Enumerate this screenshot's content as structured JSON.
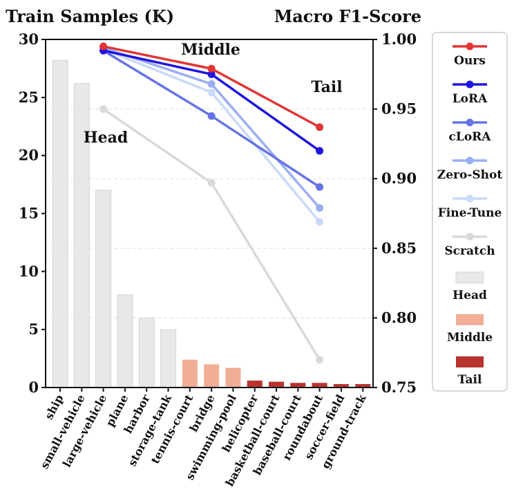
{
  "chart_data": {
    "type": "bar+line",
    "title_left": "Train Samples (K)",
    "title_right": "Macro F1-Score",
    "categories": [
      "ship",
      "small-vehicle",
      "large-vehicle",
      "plane",
      "harbor",
      "storage-tank",
      "tennis-court",
      "bridge",
      "swimming-pool",
      "helicopter",
      "basketball-court",
      "baseball-court",
      "roundabout",
      "soccer-field",
      "ground-track"
    ],
    "bars": {
      "axis": "left",
      "ylim": [
        0,
        30
      ],
      "yticks": [
        0,
        5,
        10,
        15,
        20,
        25,
        30
      ],
      "values": [
        28.2,
        26.2,
        17.0,
        8.0,
        6.0,
        5.0,
        2.4,
        2.0,
        1.7,
        0.6,
        0.5,
        0.4,
        0.4,
        0.3,
        0.3
      ],
      "groups": [
        "Head",
        "Head",
        "Head",
        "Head",
        "Head",
        "Head",
        "Middle",
        "Middle",
        "Middle",
        "Tail",
        "Tail",
        "Tail",
        "Tail",
        "Tail",
        "Tail"
      ],
      "group_colors": {
        "Head": "#e8e8e8",
        "Middle": "#efae95",
        "Tail": "#b9342f"
      }
    },
    "lines": {
      "axis": "right",
      "ylim": [
        0.75,
        1.0
      ],
      "yticks": [
        "0.75",
        "0.80",
        "0.85",
        "0.90",
        "0.95",
        "1.00"
      ],
      "x_categories": [
        "large-vehicle",
        "bridge",
        "roundabout"
      ],
      "series": [
        {
          "name": "Scratch",
          "color": "#d9d9d9",
          "values": [
            0.95,
            0.897,
            0.77
          ]
        },
        {
          "name": "Fine-Tune",
          "color": "#c9daf8",
          "values": [
            0.993,
            0.962,
            0.869
          ]
        },
        {
          "name": "Zero-Shot",
          "color": "#9aaef2",
          "values": [
            0.994,
            0.968,
            0.879
          ]
        },
        {
          "name": "cLoRA",
          "color": "#6674e6",
          "values": [
            0.992,
            0.945,
            0.894
          ]
        },
        {
          "name": "LoRA",
          "color": "#1f14e0",
          "values": [
            0.992,
            0.975,
            0.92
          ]
        },
        {
          "name": "Ours",
          "color": "#e23434",
          "values": [
            0.995,
            0.979,
            0.937
          ]
        }
      ]
    },
    "region_labels": [
      "Head",
      "Middle",
      "Tail"
    ],
    "legend": {
      "placement": "right",
      "entries": [
        "Ours",
        "LoRA",
        "cLoRA",
        "Zero-Shot",
        "Fine-Tune",
        "Scratch",
        "Head",
        "Middle",
        "Tail"
      ]
    },
    "grid": "horizontal dashed"
  }
}
